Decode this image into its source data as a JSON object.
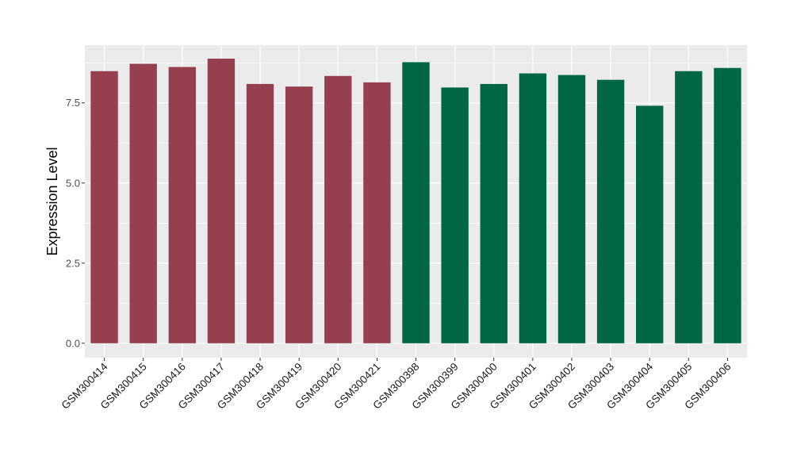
{
  "chart_data": {
    "type": "bar",
    "title": "",
    "xlabel": "",
    "ylabel": "Expression Level",
    "ylim": [
      -0.45,
      9.3
    ],
    "yticks": [
      0.0,
      2.5,
      5.0,
      7.5
    ],
    "ytick_labels": [
      "0.0",
      "2.5",
      "5.0",
      "7.5"
    ],
    "grid": true,
    "legend": "none",
    "categories": [
      "GSM300414",
      "GSM300415",
      "GSM300416",
      "GSM300417",
      "GSM300418",
      "GSM300419",
      "GSM300420",
      "GSM300421",
      "GSM300398",
      "GSM300399",
      "GSM300400",
      "GSM300401",
      "GSM300402",
      "GSM300403",
      "GSM300404",
      "GSM300405",
      "GSM300406"
    ],
    "values": [
      8.49,
      8.72,
      8.62,
      8.88,
      8.09,
      8.01,
      8.34,
      8.14,
      8.77,
      7.98,
      8.09,
      8.42,
      8.37,
      8.22,
      7.41,
      8.49,
      8.59
    ],
    "colors": [
      "#96404f",
      "#96404f",
      "#96404f",
      "#96404f",
      "#96404f",
      "#96404f",
      "#96404f",
      "#96404f",
      "#006644",
      "#006644",
      "#006644",
      "#006644",
      "#006644",
      "#006644",
      "#006644",
      "#006644",
      "#006644"
    ],
    "panel_background": "#ebebeb",
    "grid_color": "#ffffff"
  }
}
